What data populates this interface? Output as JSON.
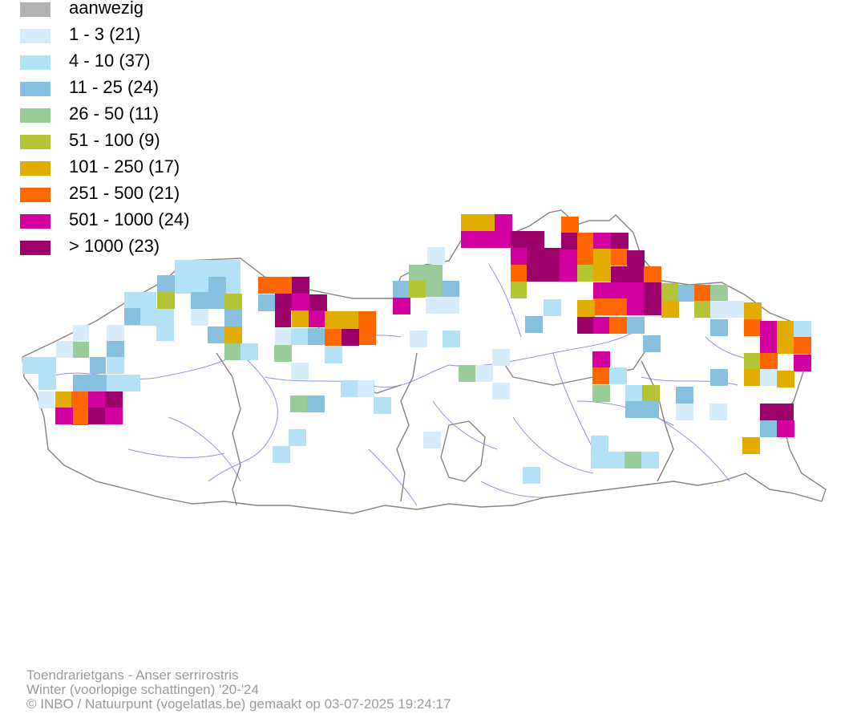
{
  "legend": {
    "items": [
      {
        "label": "aanwezig",
        "color": "#b2b2b2"
      },
      {
        "label": "1 - 3 (21)",
        "color": "#d6ecfa"
      },
      {
        "label": "4 - 10 (37)",
        "color": "#b3e1f8"
      },
      {
        "label": "11 - 25 (24)",
        "color": "#88c1e0"
      },
      {
        "label": "26 - 50 (11)",
        "color": "#99cc99"
      },
      {
        "label": "51 - 100 (9)",
        "color": "#b3c435"
      },
      {
        "label": "101 - 250 (17)",
        "color": "#e0ad00"
      },
      {
        "label": "251 - 500 (21)",
        "color": "#ff6600"
      },
      {
        "label": "501 - 1000 (24)",
        "color": "#d1009e"
      },
      {
        "label": "> 1000 (23)",
        "color": "#9c006b"
      }
    ]
  },
  "credits": {
    "species": "Toendrarietgans - Anser serrirostris",
    "period": "Winter (voorlopige schattingen) '20-'24",
    "copyright": "© INBO / Natuurpunt (vogelatlas.be) gemaakt op 03-07-2025 19:24:17"
  }
}
